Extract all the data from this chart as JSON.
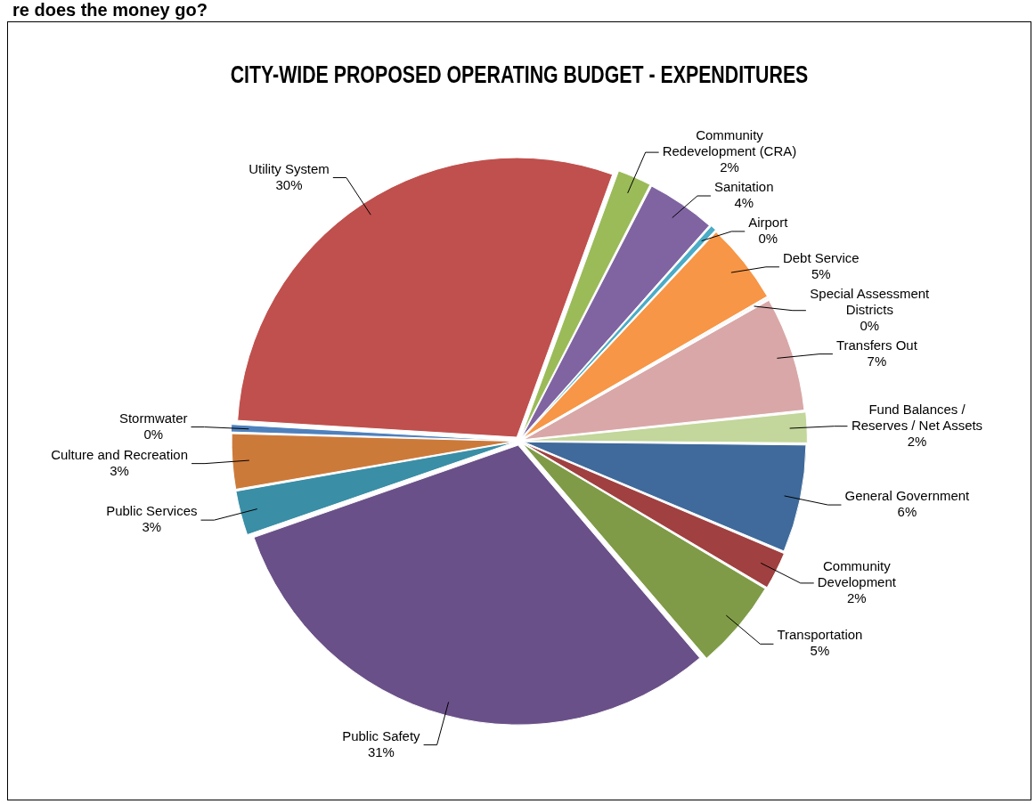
{
  "chart_data": {
    "type": "pie",
    "title": "CITY-WIDE PROPOSED OPERATING BUDGET - EXPENDITURES",
    "annotations": [
      "re does the money go?"
    ],
    "categories": [
      "Community Redevelopment (CRA)",
      "Sanitation",
      "Airport",
      "Debt Service",
      "Special Assessment Districts",
      "Transfers Out",
      "Fund Balances / Reserves / Net Assets",
      "General Government",
      "Community Development",
      "Transportation",
      "Public Safety",
      "Public Services",
      "Culture and Recreation",
      "Stormwater",
      "Utility System"
    ],
    "values": [
      2,
      4,
      0.4,
      4.7,
      0.1,
      6.6,
      1.8,
      6.2,
      2.2,
      5.2,
      30.9,
      2.6,
      3.2,
      0.5,
      29.6
    ],
    "value_labels": [
      "2%",
      "4%",
      "0%",
      "5%",
      "0%",
      "7%",
      "2%",
      "6%",
      "2%",
      "5%",
      "31%",
      "3%",
      "3%",
      "0%",
      "30%"
    ],
    "colors": [
      "#9bbb59",
      "#8064a2",
      "#4bacc6",
      "#f79646",
      "#2c4d75",
      "#d9a7a7",
      "#c3d69b",
      "#3f6a9b",
      "#a04040",
      "#7f9b47",
      "#6a5088",
      "#3a8ea6",
      "#cc7a3a",
      "#4f81bd",
      "#c0504d"
    ],
    "legend": false
  }
}
